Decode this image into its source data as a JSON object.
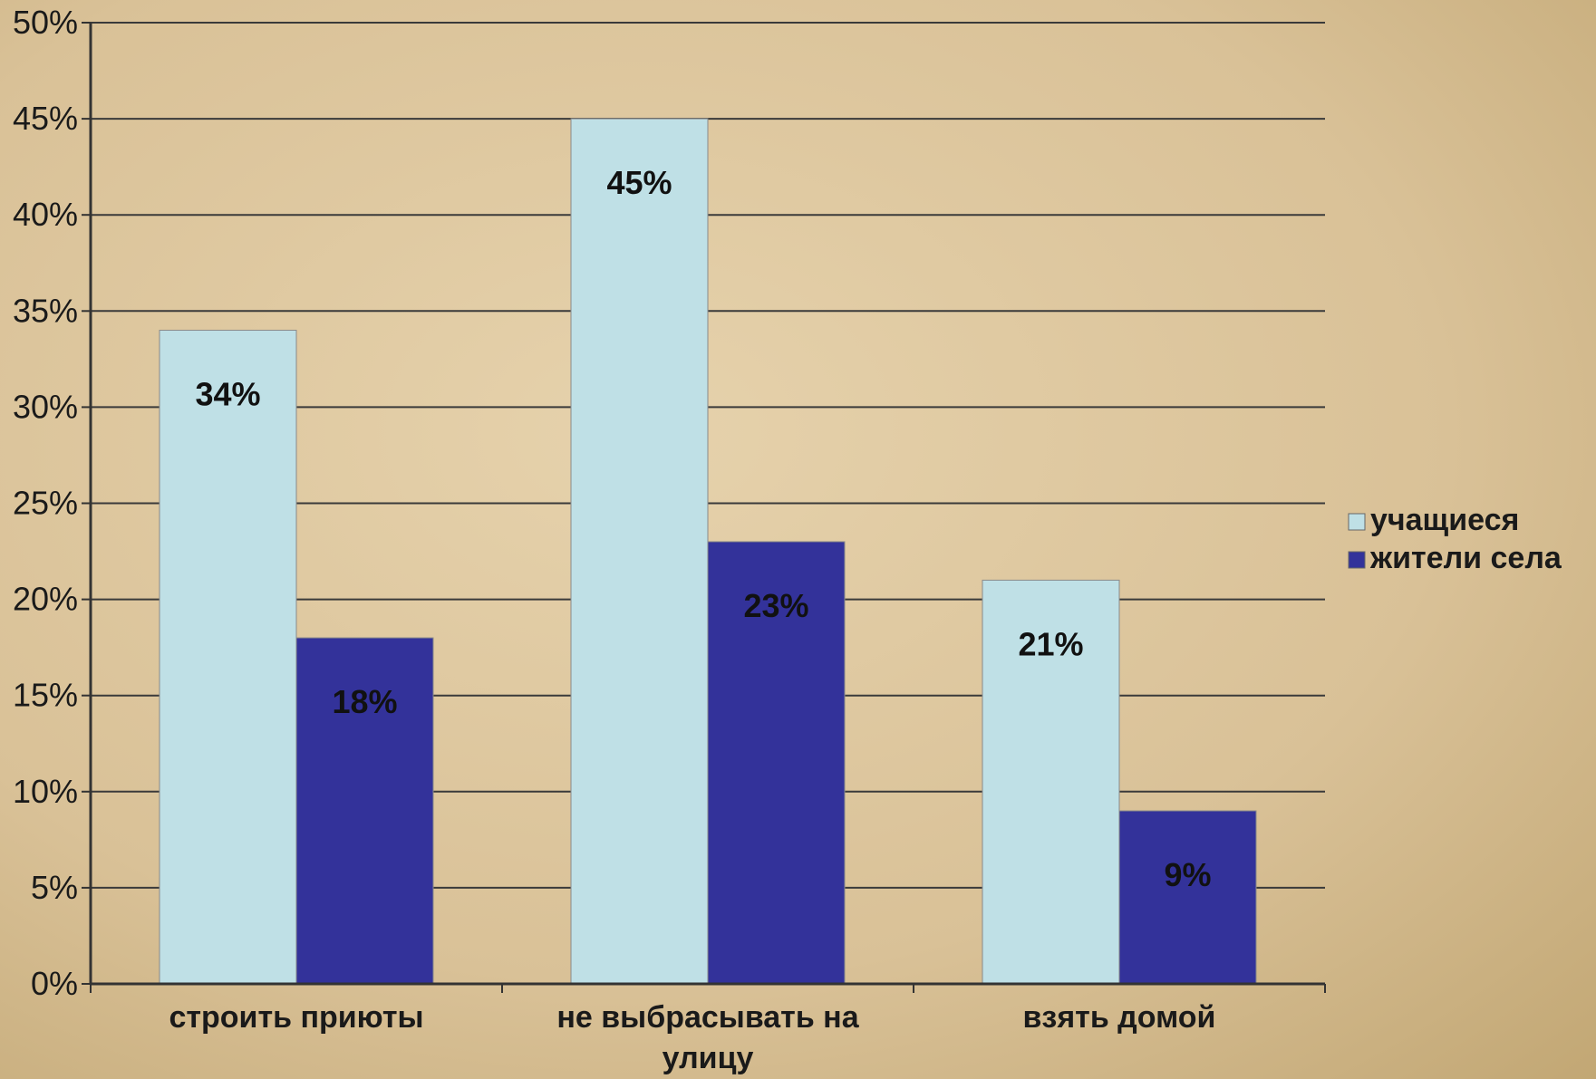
{
  "chart_data": {
    "type": "bar",
    "categories": [
      "строить приюты",
      "не выбрасывать на улицу",
      "взять домой"
    ],
    "series": [
      {
        "name": "учащиеся",
        "values": [
          34,
          45,
          21
        ],
        "labels": [
          "34%",
          "45%",
          "21%"
        ],
        "color": "#bfe0e6"
      },
      {
        "name": "жители села",
        "values": [
          18,
          23,
          9
        ],
        "labels": [
          "18%",
          "23%",
          "9%"
        ],
        "color": "#33329a"
      }
    ],
    "y_ticks": [
      0,
      5,
      10,
      15,
      20,
      25,
      30,
      35,
      40,
      45,
      50
    ],
    "y_tick_labels": [
      "0%",
      "5%",
      "10%",
      "15%",
      "20%",
      "25%",
      "30%",
      "35%",
      "40%",
      "45%",
      "50%"
    ],
    "ylim": [
      0,
      50
    ],
    "grid": true,
    "legend_position": "right",
    "colors": {
      "background": "#d9c29a",
      "grid": "#3a3a3a",
      "axis": "#333333"
    }
  }
}
